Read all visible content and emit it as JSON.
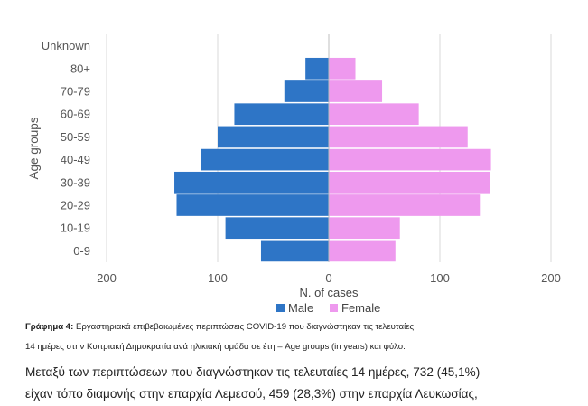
{
  "chart_data": {
    "type": "bar",
    "orientation": "horizontal",
    "categories": [
      "0-9",
      "10-19",
      "20-29",
      "30-39",
      "40-49",
      "50-59",
      "60-69",
      "70-79",
      "80+",
      "Unknown"
    ],
    "series": [
      {
        "name": "Male",
        "values": [
          61,
          93,
          137,
          139,
          115,
          100,
          85,
          40,
          21,
          0
        ],
        "color": "#2e75c6"
      },
      {
        "name": "Female",
        "values": [
          60,
          64,
          136,
          145,
          146,
          125,
          81,
          48,
          24,
          0
        ],
        "color": "#ee99ee"
      }
    ],
    "xlabel": "N. of cases",
    "ylabel": "Age groups",
    "xlim": [
      -200,
      200
    ],
    "xticks": [
      -200,
      -100,
      0,
      100,
      200
    ],
    "xtick_labels": [
      "200",
      "100",
      "0",
      "100",
      "200"
    ],
    "grid": "vertical",
    "legend": "bottom"
  },
  "caption": {
    "label": "Γράφημα 4:",
    "line1": "Εργαστηριακά επιβεβαιωμένες περιπτώσεις COVID-19 που διαγνώστηκαν τις τελευταίες",
    "line2": "14 ημέρες στην Κυπριακή Δημοκρατία ανά ηλικιακή ομάδα σε έτη – Age groups (in years) και φύλο."
  },
  "body": {
    "line1": "Μεταξύ των περιπτώσεων που διαγνώστηκαν τις τελευταίες 14 ημέρες, 732 (45,1%)",
    "line2": "είχαν τόπο διαμονής στην επαρχία Λεμεσού, 459 (28,3%) στην επαρχία Λευκωσίας,"
  }
}
